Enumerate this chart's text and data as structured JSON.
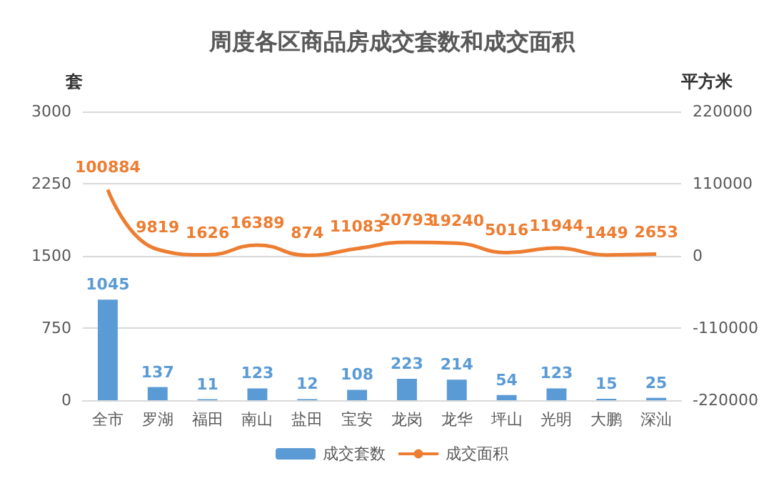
{
  "chart_data": {
    "type": "bar",
    "title": "周度各区商品房成交套数和成交面积",
    "categories": [
      "全市",
      "罗湖",
      "福田",
      "南山",
      "盐田",
      "宝安",
      "龙岗",
      "龙华",
      "坪山",
      "光明",
      "大鹏",
      "深汕"
    ],
    "series": [
      {
        "name": "成交套数",
        "color": "#5b9bd5",
        "values": [
          1045,
          137,
          11,
          123,
          12,
          108,
          223,
          214,
          54,
          123,
          15,
          25
        ]
      },
      {
        "name": "成交面积",
        "type": "line",
        "axis": "y2",
        "color": "#ed7d31",
        "values": [
          100884,
          9819,
          1626,
          16389,
          874,
          11083,
          20793,
          19240,
          5016,
          11944,
          1449,
          2653
        ]
      }
    ],
    "ylabel": "套",
    "y2label": "平方米",
    "ylim": [
      0,
      3000
    ],
    "yticks": [
      0,
      750,
      1500,
      2250,
      3000
    ],
    "y2lim": [
      -220000,
      220000
    ],
    "y2ticks": [
      -220000,
      -110000,
      0,
      110000,
      220000
    ],
    "grid": "y",
    "legend": "bottom",
    "data_labels": true,
    "marker": "none"
  }
}
